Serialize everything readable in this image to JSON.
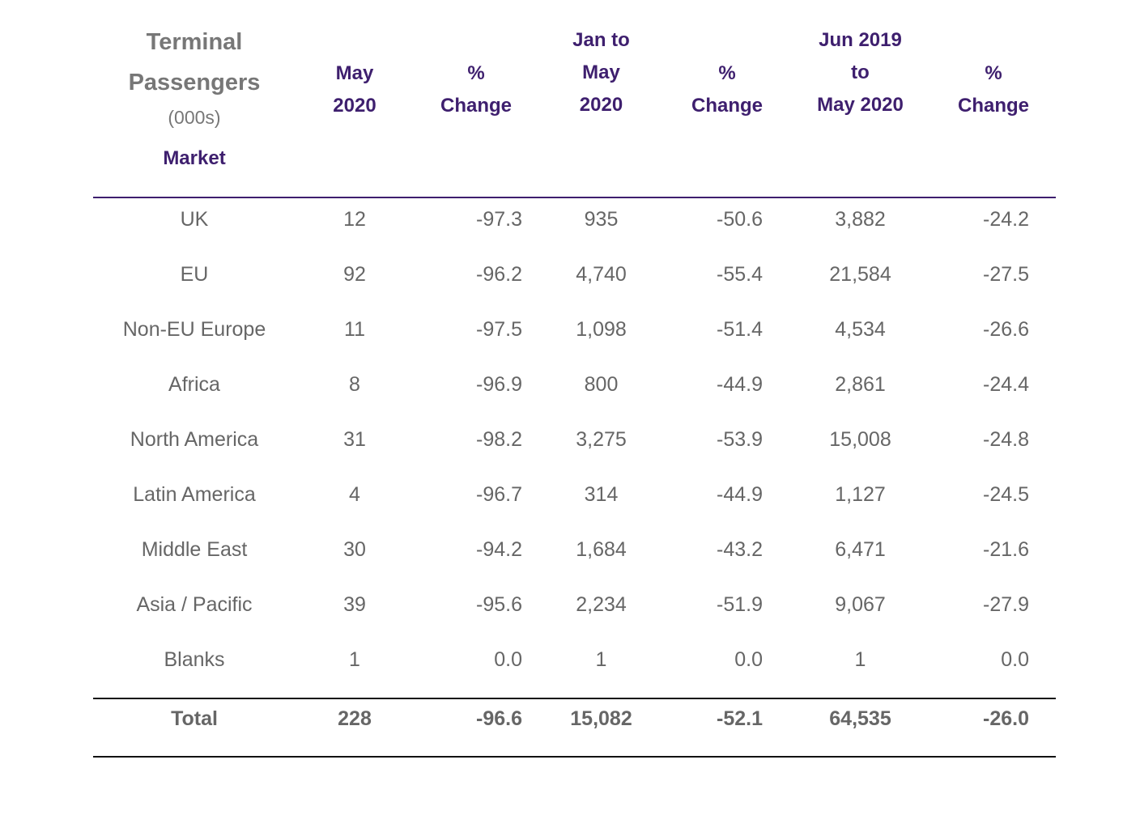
{
  "table": {
    "title_line1": "Terminal",
    "title_line2": "Passengers",
    "title_units": "(000s)",
    "market_label": "Market",
    "columns": [
      {
        "lines": [
          "May",
          "2020"
        ]
      },
      {
        "lines": [
          "%",
          "Change"
        ]
      },
      {
        "lines": [
          "Jan to",
          "May",
          "2020"
        ]
      },
      {
        "lines": [
          "%",
          "Change"
        ]
      },
      {
        "lines": [
          "Jun 2019",
          "to",
          "May 2020"
        ]
      },
      {
        "lines": [
          "%",
          "Change"
        ]
      }
    ],
    "rows": [
      {
        "market": "UK",
        "may2020": "12",
        "may_change": "-97.3",
        "jan_may": "935",
        "jan_may_change": "-50.6",
        "rolling": "3,882",
        "rolling_change": "-24.2"
      },
      {
        "market": "EU",
        "may2020": "92",
        "may_change": "-96.2",
        "jan_may": "4,740",
        "jan_may_change": "-55.4",
        "rolling": "21,584",
        "rolling_change": "-27.5"
      },
      {
        "market": "Non-EU Europe",
        "may2020": "11",
        "may_change": "-97.5",
        "jan_may": "1,098",
        "jan_may_change": "-51.4",
        "rolling": "4,534",
        "rolling_change": "-26.6"
      },
      {
        "market": "Africa",
        "may2020": "8",
        "may_change": "-96.9",
        "jan_may": "800",
        "jan_may_change": "-44.9",
        "rolling": "2,861",
        "rolling_change": "-24.4"
      },
      {
        "market": "North America",
        "may2020": "31",
        "may_change": "-98.2",
        "jan_may": "3,275",
        "jan_may_change": "-53.9",
        "rolling": "15,008",
        "rolling_change": "-24.8"
      },
      {
        "market": "Latin America",
        "may2020": "4",
        "may_change": "-96.7",
        "jan_may": "314",
        "jan_may_change": "-44.9",
        "rolling": "1,127",
        "rolling_change": "-24.5"
      },
      {
        "market": "Middle East",
        "may2020": "30",
        "may_change": "-94.2",
        "jan_may": "1,684",
        "jan_may_change": "-43.2",
        "rolling": "6,471",
        "rolling_change": "-21.6"
      },
      {
        "market": "Asia / Pacific",
        "may2020": "39",
        "may_change": "-95.6",
        "jan_may": "2,234",
        "jan_may_change": "-51.9",
        "rolling": "9,067",
        "rolling_change": "-27.9"
      },
      {
        "market": "Blanks",
        "may2020": "1",
        "may_change": "0.0",
        "jan_may": "1",
        "jan_may_change": "0.0",
        "rolling": "1",
        "rolling_change": "0.0"
      }
    ],
    "total": {
      "market": "Total",
      "may2020": "228",
      "may_change": "-96.6",
      "jan_may": "15,082",
      "jan_may_change": "-52.1",
      "rolling": "64,535",
      "rolling_change": "-26.0"
    }
  },
  "colors": {
    "accent": "#3e1f6e",
    "body_text": "#666666",
    "title_text": "#777777"
  }
}
